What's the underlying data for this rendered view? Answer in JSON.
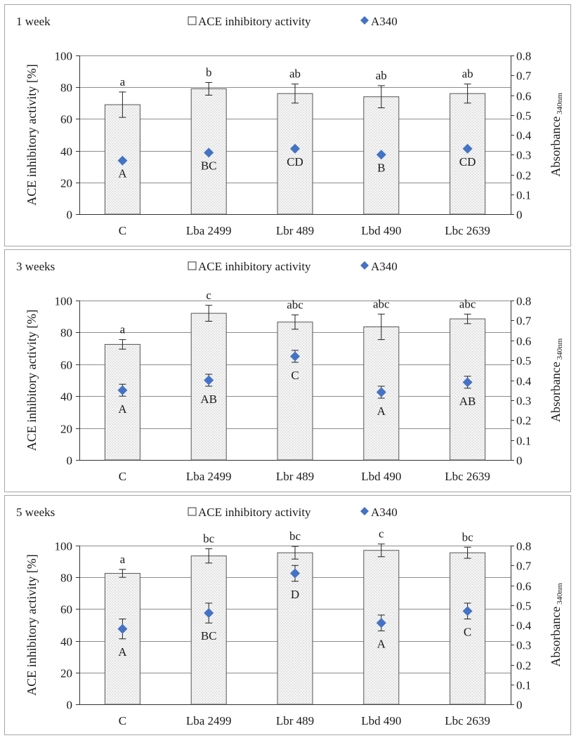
{
  "legend": {
    "bar_label": "ACE inhibitory activity",
    "marker_label": "A340"
  },
  "colors": {
    "marker": "#4472C4",
    "bar_fill": "#eeeeee",
    "bar_stroke": "#555555",
    "grid": "#8c8c8c",
    "frame": "#a6a6a6"
  },
  "chart_data": [
    {
      "type": "bar",
      "panel_label": "1 week",
      "categories": [
        "C",
        "Lba 2499",
        "Lbr 489",
        "Lbd 490",
        "Lbc 2639"
      ],
      "ylabel": "ACE inhibitory activity [%]",
      "ylabel2": {
        "main": "Absorbance",
        "sub": "340nm"
      },
      "ylim": [
        0,
        100
      ],
      "yticks": [
        0,
        20,
        40,
        60,
        80,
        100
      ],
      "y2lim": [
        0,
        0.8
      ],
      "y2ticks": [
        "0",
        "0.1",
        "0.2",
        "0.3",
        "0.4",
        "0.5",
        "0.6",
        "0.7",
        "0.8"
      ],
      "grid": true,
      "series": [
        {
          "name": "ACE inhibitory activity",
          "kind": "bar",
          "axis": "left",
          "values": [
            69,
            79,
            76,
            74,
            76
          ],
          "errors": [
            8,
            4,
            6,
            7,
            6
          ],
          "labels": [
            "a",
            "b",
            "ab",
            "ab",
            "ab"
          ]
        },
        {
          "name": "A340",
          "kind": "marker",
          "axis": "right",
          "values": [
            0.27,
            0.31,
            0.33,
            0.3,
            0.33
          ],
          "errors": [
            0,
            0,
            0,
            0,
            0
          ],
          "labels": [
            "A",
            "BC",
            "CD",
            "B",
            "CD"
          ]
        }
      ]
    },
    {
      "type": "bar",
      "panel_label": "3 weeks",
      "categories": [
        "C",
        "Lba 2499",
        "Lbr 489",
        "Lbd 490",
        "Lbc 2639"
      ],
      "ylabel": "ACE inhibitory activity [%]",
      "ylabel2": {
        "main": "Absorbance",
        "sub": "340nm"
      },
      "ylim": [
        0,
        100
      ],
      "yticks": [
        0,
        20,
        40,
        60,
        80,
        100
      ],
      "y2lim": [
        0,
        0.8
      ],
      "y2ticks": [
        "0",
        "0.1",
        "0.2",
        "0.3",
        "0.4",
        "0.5",
        "0.6",
        "0.7",
        "0.8"
      ],
      "grid": true,
      "series": [
        {
          "name": "ACE inhibitory activity",
          "kind": "bar",
          "axis": "left",
          "values": [
            72.5,
            92,
            86.5,
            83.5,
            88.5
          ],
          "errors": [
            3,
            5,
            4.5,
            8,
            3
          ],
          "labels": [
            "a",
            "c",
            "abc",
            "abc",
            "abc"
          ]
        },
        {
          "name": "A340",
          "kind": "marker",
          "axis": "right",
          "values": [
            0.35,
            0.4,
            0.52,
            0.34,
            0.39
          ],
          "errors": [
            0.03,
            0.03,
            0.03,
            0.03,
            0.03
          ],
          "labels": [
            "A",
            "AB",
            "C",
            "A",
            "AB"
          ]
        }
      ]
    },
    {
      "type": "bar",
      "panel_label": "5 weeks",
      "categories": [
        "C",
        "Lba 2499",
        "Lbr 489",
        "Lbd 490",
        "Lbc 2639"
      ],
      "ylabel": "ACE inhibitory activity [%]",
      "ylabel2": {
        "main": "Absorbance",
        "sub": "340nm"
      },
      "ylim": [
        0,
        100
      ],
      "yticks": [
        0,
        20,
        40,
        60,
        80,
        100
      ],
      "y2lim": [
        0,
        0.8
      ],
      "y2ticks": [
        "0",
        "0.1",
        "0.2",
        "0.3",
        "0.4",
        "0.5",
        "0.6",
        "0.7",
        "0.8"
      ],
      "grid": true,
      "series": [
        {
          "name": "ACE inhibitory activity",
          "kind": "bar",
          "axis": "left",
          "values": [
            82.5,
            93.5,
            95.5,
            97,
            95.5
          ],
          "errors": [
            2.5,
            4.5,
            4,
            4,
            3.5
          ],
          "labels": [
            "a",
            "bc",
            "bc",
            "c",
            "bc"
          ]
        },
        {
          "name": "A340",
          "kind": "marker",
          "axis": "right",
          "values": [
            0.38,
            0.46,
            0.66,
            0.41,
            0.47
          ],
          "errors": [
            0.05,
            0.05,
            0.04,
            0.04,
            0.04
          ],
          "labels": [
            "A",
            "BC",
            "D",
            "A",
            "C"
          ]
        }
      ]
    }
  ]
}
